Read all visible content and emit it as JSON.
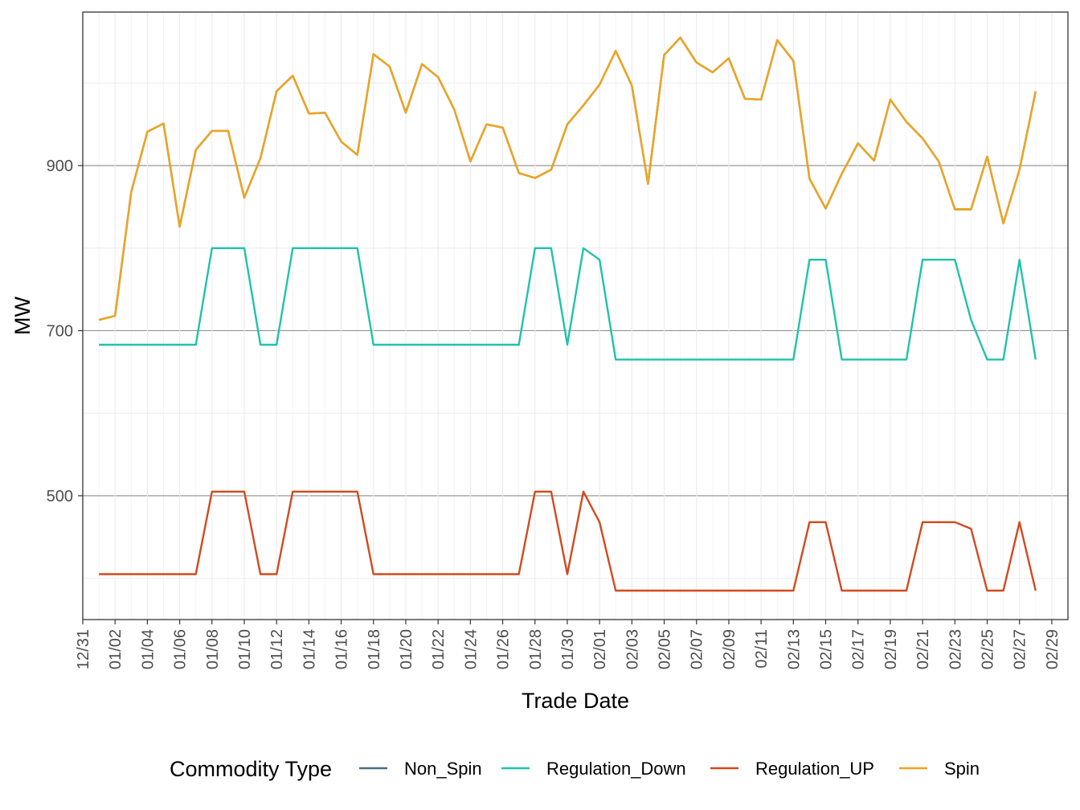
{
  "chart_data": {
    "type": "line",
    "xlabel": "Trade Date",
    "ylabel": "MW",
    "x_axis": {
      "type": "date",
      "range": [
        "2019-12-31",
        "2020-03-01"
      ],
      "tick_step_days": 2,
      "tick_format": "MM/DD"
    },
    "ylim": [
      350,
      1086
    ],
    "y_ticks": [
      500,
      700,
      900
    ],
    "y_minor_ticks": [
      400,
      600,
      800,
      1000
    ],
    "grid": true,
    "legend": {
      "title": "Commodity Type",
      "position": "bottom",
      "entries": [
        "Non_Spin",
        "Regulation_Down",
        "Regulation_UP",
        "Spin"
      ]
    },
    "x_start": "2020-01-01",
    "series": [
      {
        "name": "Non_Spin",
        "color": "#4a6f7f",
        "values": [
          713,
          718,
          868,
          941,
          951,
          826,
          919,
          942,
          942,
          861,
          909,
          990,
          1009,
          963,
          964,
          929,
          913,
          1035,
          1020,
          964,
          1023,
          1007,
          968,
          905,
          950,
          946,
          891,
          885,
          895,
          950,
          973,
          998,
          1039,
          997,
          878,
          1034,
          1055,
          1025,
          1013,
          1030,
          981,
          980,
          1052,
          1027,
          884,
          848,
          890,
          927,
          906,
          980,
          953,
          933,
          905,
          847,
          847,
          911,
          830,
          895,
          990
        ]
      },
      {
        "name": "Regulation_Down",
        "color": "#1fc3aa",
        "values": [
          683,
          683,
          683,
          683,
          683,
          683,
          683,
          800,
          800,
          800,
          683,
          683,
          800,
          800,
          800,
          800,
          800,
          683,
          683,
          683,
          683,
          683,
          683,
          683,
          683,
          683,
          683,
          800,
          800,
          683,
          800,
          786,
          665,
          665,
          665,
          665,
          665,
          665,
          665,
          665,
          665,
          665,
          665,
          665,
          786,
          786,
          665,
          665,
          665,
          665,
          665,
          786,
          786,
          786,
          713,
          665,
          665,
          786,
          665
        ]
      },
      {
        "name": "Regulation_UP",
        "color": "#d04a1e",
        "values": [
          405,
          405,
          405,
          405,
          405,
          405,
          405,
          505,
          505,
          505,
          405,
          405,
          505,
          505,
          505,
          505,
          505,
          405,
          405,
          405,
          405,
          405,
          405,
          405,
          405,
          405,
          405,
          505,
          505,
          405,
          505,
          468,
          385,
          385,
          385,
          385,
          385,
          385,
          385,
          385,
          385,
          385,
          385,
          385,
          468,
          468,
          385,
          385,
          385,
          385,
          385,
          468,
          468,
          468,
          460,
          385,
          385,
          468,
          385
        ]
      },
      {
        "name": "Spin",
        "color": "#f0a31c",
        "values": [
          713,
          718,
          868,
          941,
          951,
          826,
          919,
          942,
          942,
          861,
          909,
          990,
          1009,
          963,
          964,
          929,
          913,
          1035,
          1020,
          964,
          1023,
          1007,
          968,
          905,
          950,
          946,
          891,
          885,
          895,
          950,
          973,
          998,
          1039,
          997,
          878,
          1034,
          1055,
          1025,
          1013,
          1030,
          981,
          980,
          1052,
          1027,
          884,
          848,
          890,
          927,
          906,
          980,
          953,
          933,
          905,
          847,
          847,
          911,
          830,
          895,
          990
        ]
      }
    ]
  }
}
